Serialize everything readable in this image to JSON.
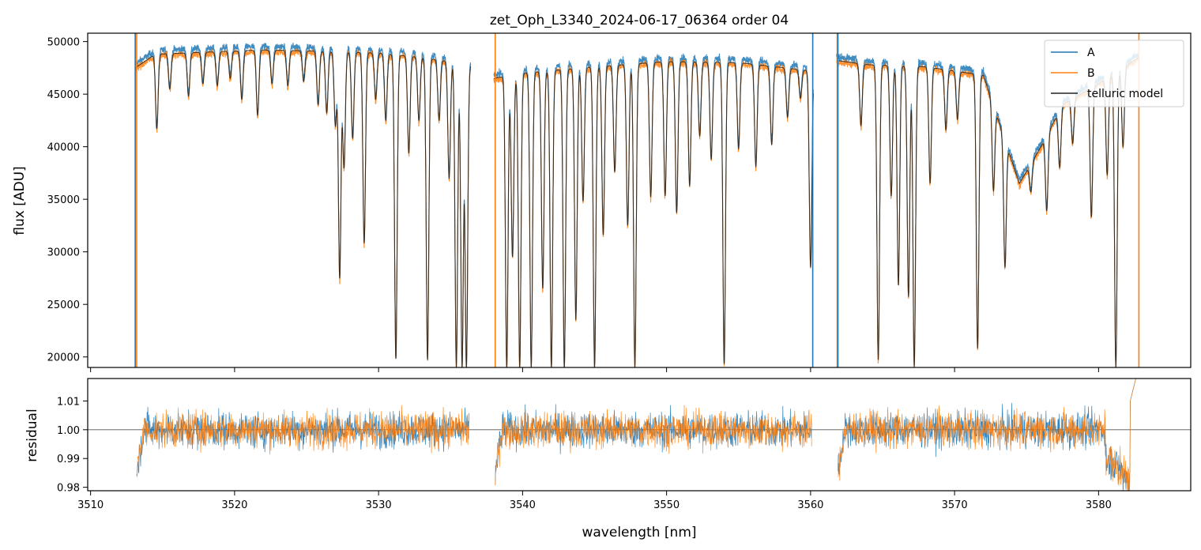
{
  "chart_data": [
    {
      "type": "line",
      "title": "zet_Oph_L3340_2024-06-17_06364  order 04",
      "xlabel": "",
      "ylabel": "flux [ADU]",
      "xlim": [
        3509.8,
        3586.4
      ],
      "ylim": [
        19000,
        50800
      ],
      "yticks": [
        20000,
        25000,
        30000,
        35000,
        40000,
        45000,
        50000
      ],
      "xticks": [
        3510,
        3520,
        3530,
        3540,
        3550,
        3560,
        3570,
        3580
      ],
      "legend": "top-right",
      "legend_entries": [
        "A",
        "B",
        "telluric model"
      ],
      "segments": [
        [
          3513.1,
          3536.4
        ],
        [
          3538.0,
          3560.2
        ],
        [
          3561.8,
          3582.8
        ]
      ],
      "continuum": [
        [
          3513.1,
          47500
        ],
        [
          3514.5,
          48800
        ],
        [
          3518.0,
          49000
        ],
        [
          3522.0,
          49200
        ],
        [
          3526.0,
          49100
        ],
        [
          3530.0,
          48900
        ],
        [
          3533.0,
          48500
        ],
        [
          3536.4,
          47800
        ],
        [
          3538.0,
          46500
        ],
        [
          3540.0,
          47000
        ],
        [
          3545.0,
          47600
        ],
        [
          3550.0,
          48100
        ],
        [
          3555.0,
          48000
        ],
        [
          3560.2,
          47200
        ],
        [
          3561.8,
          48200
        ],
        [
          3564.0,
          47800
        ],
        [
          3568.0,
          47600
        ],
        [
          3572.0,
          46800
        ],
        [
          3574.5,
          36500
        ],
        [
          3576.0,
          40000
        ],
        [
          3577.5,
          44000
        ],
        [
          3580.0,
          46000
        ],
        [
          3582.8,
          48500
        ]
      ],
      "absorption_lines": [
        [
          3514.6,
          41700
        ],
        [
          3515.5,
          45500
        ],
        [
          3516.8,
          44800
        ],
        [
          3517.8,
          46000
        ],
        [
          3518.8,
          45800
        ],
        [
          3519.7,
          46500
        ],
        [
          3520.5,
          44500
        ],
        [
          3521.6,
          43000
        ],
        [
          3522.6,
          46000
        ],
        [
          3523.7,
          45800
        ],
        [
          3524.8,
          46200
        ],
        [
          3525.8,
          44000
        ],
        [
          3526.4,
          43200
        ],
        [
          3527.0,
          42000
        ],
        [
          3527.3,
          27500
        ],
        [
          3527.6,
          38000
        ],
        [
          3528.2,
          40800
        ],
        [
          3529.0,
          30800
        ],
        [
          3529.8,
          44500
        ],
        [
          3530.5,
          42500
        ],
        [
          3531.2,
          19800
        ],
        [
          3532.1,
          39400
        ],
        [
          3532.8,
          42500
        ],
        [
          3533.4,
          19700
        ],
        [
          3534.2,
          42500
        ],
        [
          3534.9,
          37000
        ],
        [
          3535.4,
          19000
        ],
        [
          3535.8,
          19000
        ],
        [
          3536.1,
          19000
        ],
        [
          3538.9,
          19000
        ],
        [
          3539.3,
          29500
        ],
        [
          3539.8,
          19000
        ],
        [
          3540.6,
          19000
        ],
        [
          3541.4,
          26500
        ],
        [
          3542.0,
          19000
        ],
        [
          3542.9,
          19000
        ],
        [
          3543.7,
          23500
        ],
        [
          3544.2,
          34800
        ],
        [
          3545.0,
          19000
        ],
        [
          3545.6,
          31600
        ],
        [
          3546.4,
          37600
        ],
        [
          3547.3,
          32500
        ],
        [
          3547.8,
          19000
        ],
        [
          3548.9,
          35200
        ],
        [
          3549.9,
          35300
        ],
        [
          3550.7,
          33700
        ],
        [
          3551.6,
          36300
        ],
        [
          3552.3,
          41000
        ],
        [
          3553.1,
          38800
        ],
        [
          3554.0,
          19300
        ],
        [
          3555.0,
          39800
        ],
        [
          3556.2,
          38100
        ],
        [
          3557.3,
          40200
        ],
        [
          3558.4,
          42800
        ],
        [
          3559.3,
          44600
        ],
        [
          3560.0,
          28500
        ],
        [
          3563.5,
          42000
        ],
        [
          3564.7,
          19700
        ],
        [
          3565.6,
          35300
        ],
        [
          3566.1,
          26800
        ],
        [
          3566.8,
          25700
        ],
        [
          3567.2,
          19000
        ],
        [
          3568.3,
          36500
        ],
        [
          3569.4,
          41600
        ],
        [
          3570.2,
          42600
        ],
        [
          3571.6,
          20800
        ],
        [
          3572.7,
          35800
        ],
        [
          3573.5,
          28500
        ],
        [
          3575.3,
          35700
        ],
        [
          3576.4,
          33900
        ],
        [
          3577.3,
          38000
        ],
        [
          3578.2,
          40300
        ],
        [
          3579.5,
          33300
        ],
        [
          3580.6,
          37300
        ],
        [
          3581.2,
          19000
        ],
        [
          3581.7,
          40000
        ]
      ]
    },
    {
      "type": "line",
      "title": "",
      "xlabel": "wavelength [nm]",
      "ylabel": "residual",
      "xlim": [
        3509.8,
        3586.4
      ],
      "ylim": [
        0.9788,
        1.0178
      ],
      "yticks": [
        0.98,
        0.99,
        1.0,
        1.01
      ],
      "ytick_labels": [
        "0.98",
        "0.99",
        "1.00",
        "1.01"
      ],
      "xticks": [
        3510,
        3520,
        3530,
        3540,
        3550,
        3560,
        3570,
        3580
      ],
      "reference_line": 1.0,
      "segments": [
        [
          3513.2,
          3536.3
        ],
        [
          3538.1,
          3560.1
        ],
        [
          3561.9,
          3582.8
        ]
      ],
      "noise_sigma": 0.0045
    }
  ],
  "colors": {
    "A": "#1f77b4",
    "B": "#ff7f0e",
    "model": "#222222",
    "refline": "#555555"
  }
}
